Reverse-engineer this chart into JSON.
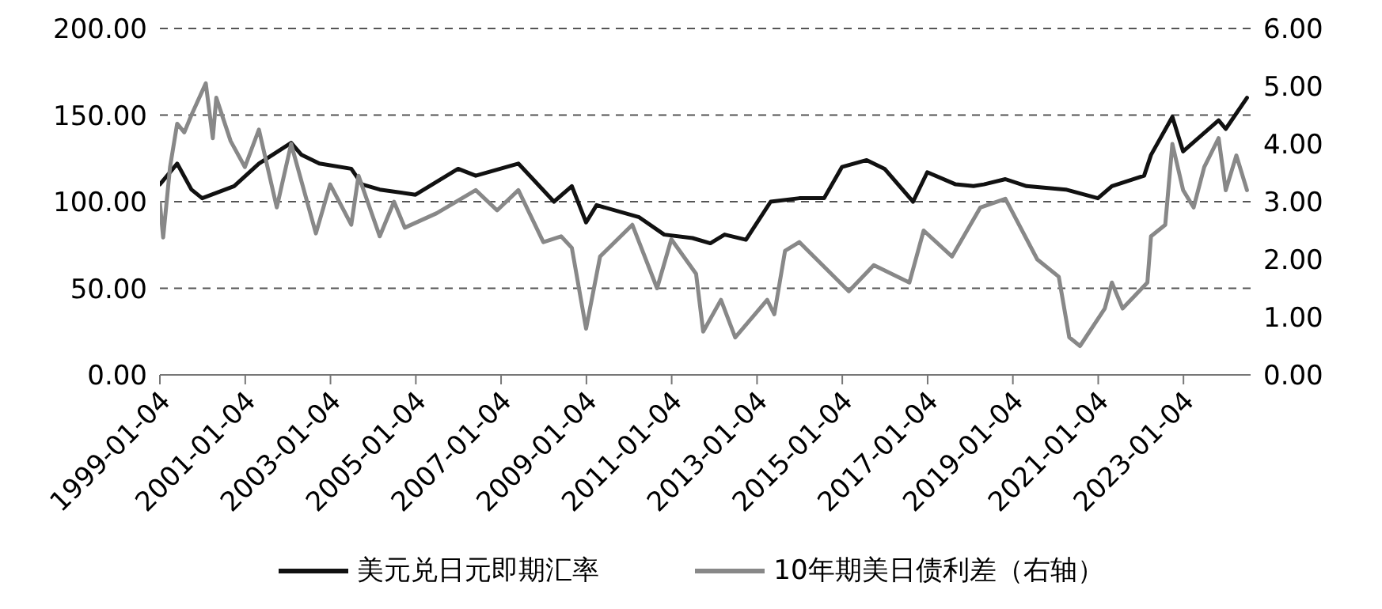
{
  "chart_data": {
    "type": "line",
    "xlim": [
      "1999-01-04",
      "2024-08-01"
    ],
    "xticks": [
      "1999-01-04",
      "2001-01-04",
      "2003-01-04",
      "2005-01-04",
      "2007-01-04",
      "2009-01-04",
      "2011-01-04",
      "2013-01-04",
      "2015-01-04",
      "2017-01-04",
      "2019-01-04",
      "2021-01-04",
      "2023-01-04"
    ],
    "ylim": [
      0,
      200
    ],
    "yticks": [
      {
        "value": 0,
        "label": "0.00"
      },
      {
        "value": 50,
        "label": "50.00"
      },
      {
        "value": 100,
        "label": "100.00"
      },
      {
        "value": 150,
        "label": "150.00"
      },
      {
        "value": 200,
        "label": "200.00"
      }
    ],
    "y2lim": [
      0,
      6
    ],
    "y2ticks": [
      {
        "value": 0,
        "label": "0.00"
      },
      {
        "value": 1,
        "label": "1.00"
      },
      {
        "value": 2,
        "label": "2.00"
      },
      {
        "value": 3,
        "label": "3.00"
      },
      {
        "value": 4,
        "label": "4.00"
      },
      {
        "value": 5,
        "label": "5.00"
      },
      {
        "value": 6,
        "label": "6.00"
      }
    ],
    "grid": "y",
    "legend": "bottom",
    "marker": "none",
    "line_style": "solid",
    "series": [
      {
        "name": "美元兑日元即期汇率",
        "color": "#111111",
        "x": [
          "1999-01-04",
          "1999-06",
          "1999-10",
          "2000-01",
          "2000-10",
          "2001-05",
          "2002-02",
          "2002-05",
          "2002-10",
          "2003-07",
          "2003-10",
          "2004-03",
          "2005-01",
          "2006-01",
          "2006-06",
          "2007-06",
          "2008-04",
          "2008-09",
          "2009-01",
          "2009-04",
          "2010-04",
          "2010-11",
          "2011-07",
          "2011-12",
          "2012-04",
          "2012-10",
          "2013-05",
          "2014-01",
          "2014-08",
          "2015-01",
          "2015-08",
          "2016-01",
          "2016-09",
          "2017-01",
          "2017-09",
          "2018-02",
          "2018-05",
          "2018-11",
          "2019-05",
          "2020-04",
          "2021-01",
          "2021-05",
          "2022-02",
          "2022-04",
          "2022-10",
          "2023-01",
          "2023-11",
          "2024-01",
          "2024-07"
        ],
        "values": [
          110,
          122,
          107,
          102,
          109,
          122,
          134,
          127,
          122,
          119,
          110,
          107,
          104,
          119,
          115,
          122,
          100,
          109,
          88,
          98,
          91,
          81,
          79,
          76,
          81,
          78,
          100,
          102,
          102,
          120,
          124,
          119,
          100,
          117,
          110,
          109,
          110,
          113,
          109,
          107,
          102,
          109,
          115,
          127,
          149,
          129,
          147,
          142,
          160
        ]
      },
      {
        "name": "10年期美日债利差（右轴）",
        "color": "#888888",
        "axis": "y2",
        "x": [
          "1999-01-04",
          "1999-02",
          "1999-04",
          "1999-06",
          "1999-08",
          "1999-10",
          "2000-02",
          "2000-04",
          "2000-05",
          "2000-09",
          "2001-01",
          "2001-05",
          "2001-10",
          "2002-02",
          "2002-09",
          "2003-01",
          "2003-07",
          "2003-09",
          "2004-03",
          "2004-07",
          "2004-10",
          "2005-07",
          "2006-06",
          "2006-12",
          "2007-06",
          "2008-01",
          "2008-06",
          "2008-09",
          "2009-01",
          "2009-05",
          "2010-02",
          "2010-09",
          "2011-01",
          "2011-08",
          "2011-10",
          "2012-03",
          "2012-07",
          "2013-04",
          "2013-06",
          "2013-09",
          "2014-01",
          "2015-03",
          "2015-10",
          "2016-08",
          "2016-12",
          "2017-08",
          "2018-04",
          "2018-11",
          "2019-08",
          "2020-02",
          "2020-05",
          "2020-08",
          "2021-03",
          "2021-05",
          "2021-08",
          "2022-03",
          "2022-04",
          "2022-08",
          "2022-10",
          "2023-01",
          "2023-04",
          "2023-07",
          "2023-11",
          "2024-01",
          "2024-04",
          "2024-07"
        ],
        "values": [
          2.98,
          2.38,
          3.6,
          4.35,
          4.2,
          4.5,
          5.05,
          4.1,
          4.8,
          4.05,
          3.6,
          4.25,
          2.9,
          4.0,
          2.45,
          3.3,
          2.6,
          3.45,
          2.4,
          3.0,
          2.55,
          2.8,
          3.2,
          2.85,
          3.2,
          2.3,
          2.4,
          2.2,
          0.8,
          2.05,
          2.6,
          1.5,
          2.35,
          1.75,
          0.75,
          1.3,
          0.65,
          1.3,
          1.05,
          2.15,
          2.3,
          1.45,
          1.9,
          1.6,
          2.5,
          2.05,
          2.9,
          3.05,
          2.0,
          1.7,
          0.65,
          0.5,
          1.15,
          1.6,
          1.15,
          1.6,
          2.4,
          2.6,
          4.0,
          3.2,
          2.9,
          3.6,
          4.1,
          3.2,
          3.8,
          3.2
        ]
      }
    ]
  }
}
